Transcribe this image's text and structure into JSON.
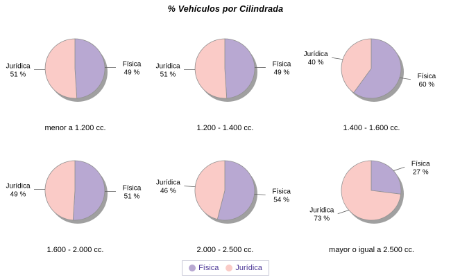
{
  "title": "% Vehículos por Cilindrada",
  "chart_data": {
    "type": "pie",
    "title": "% Vehículos por Cilindrada",
    "unit": "%",
    "layout": {
      "rows": 2,
      "cols": 3,
      "legend_position": "bottom",
      "start_angle": "top",
      "direction": "clockwise"
    },
    "series_labels": [
      "Física",
      "Jurídica"
    ],
    "slice_colors": {
      "Física": "#B8A8D2",
      "Jurídica": "#FACBC7"
    },
    "pies": [
      {
        "category": "menor a 1.200 cc.",
        "slices": [
          {
            "label": "Física",
            "value": 49
          },
          {
            "label": "Jurídica",
            "value": 51
          }
        ]
      },
      {
        "category": "1.200 - 1.400 cc.",
        "slices": [
          {
            "label": "Física",
            "value": 49
          },
          {
            "label": "Jurídica",
            "value": 51
          }
        ]
      },
      {
        "category": "1.400 - 1.600 cc.",
        "slices": [
          {
            "label": "Física",
            "value": 60
          },
          {
            "label": "Jurídica",
            "value": 40
          }
        ]
      },
      {
        "category": "1.600 - 2.000 cc.",
        "slices": [
          {
            "label": "Física",
            "value": 51
          },
          {
            "label": "Jurídica",
            "value": 49
          }
        ]
      },
      {
        "category": "2.000 - 2.500 cc.",
        "slices": [
          {
            "label": "Física",
            "value": 54
          },
          {
            "label": "Jurídica",
            "value": 46
          }
        ]
      },
      {
        "category": "mayor o igual a 2.500 cc.",
        "slices": [
          {
            "label": "Física",
            "value": 27
          },
          {
            "label": "Jurídica",
            "value": 73
          }
        ]
      }
    ]
  },
  "legend": {
    "items": [
      {
        "label": "Física",
        "color": "#B8A8D2"
      },
      {
        "label": "Jurídica",
        "color": "#FACBC7"
      }
    ]
  },
  "colors": {
    "background": "#FFFFFF",
    "title_text": "#000000",
    "slice_outline": "#909090",
    "shadow": "#A0A0A0",
    "leader_line": "#606060",
    "callout_text": "#000000",
    "category_text": "#000000",
    "legend_text": "#4B3596",
    "legend_border": "#C6C6D6"
  }
}
